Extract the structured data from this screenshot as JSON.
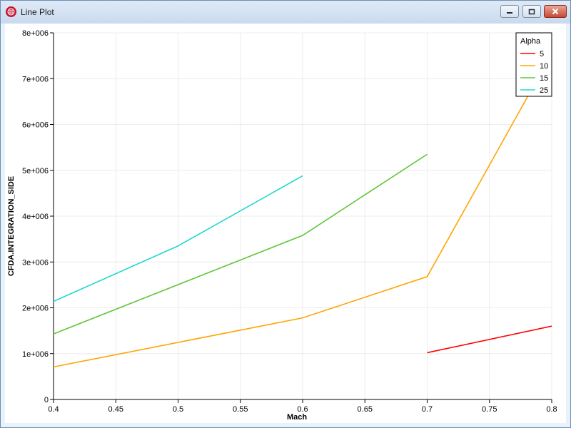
{
  "window": {
    "title": "Line Plot",
    "icon": "grid-globe-icon",
    "buttons": [
      "minimize-icon",
      "maximize-icon",
      "close-icon"
    ]
  },
  "colors": {
    "5": "#ff0000",
    "10": "#ffa500",
    "15": "#5fc53a",
    "25": "#20d8d0"
  },
  "chart_data": {
    "type": "line",
    "xlabel": "Mach",
    "ylabel": "CFDA.INTEGRATION_SIDE",
    "xlim": [
      0.4,
      0.8
    ],
    "ylim": [
      0,
      8000000
    ],
    "grid": true,
    "x_ticks": [
      "0.4",
      "0.45",
      "0.5",
      "0.55",
      "0.6",
      "0.65",
      "0.7",
      "0.75",
      "0.8"
    ],
    "y_ticks": [
      "0",
      "1e+006",
      "2e+006",
      "3e+006",
      "4e+006",
      "5e+006",
      "6e+006",
      "7e+006",
      "8e+006"
    ],
    "legend": {
      "title": "Alpha",
      "placement": "top-right"
    },
    "series": [
      {
        "name": "5",
        "color": "#ff0000",
        "points": [
          [
            0.7,
            1020000
          ],
          [
            0.8,
            1600000
          ]
        ]
      },
      {
        "name": "10",
        "color": "#ffa500",
        "points": [
          [
            0.4,
            710000
          ],
          [
            0.6,
            1780000
          ],
          [
            0.7,
            2680000
          ],
          [
            0.8,
            7550000
          ]
        ]
      },
      {
        "name": "15",
        "color": "#5fc53a",
        "points": [
          [
            0.4,
            1430000
          ],
          [
            0.6,
            3580000
          ],
          [
            0.7,
            5350000
          ]
        ]
      },
      {
        "name": "25",
        "color": "#20d8d0",
        "points": [
          [
            0.4,
            2140000
          ],
          [
            0.5,
            3350000
          ],
          [
            0.6,
            4880000
          ]
        ]
      }
    ]
  }
}
